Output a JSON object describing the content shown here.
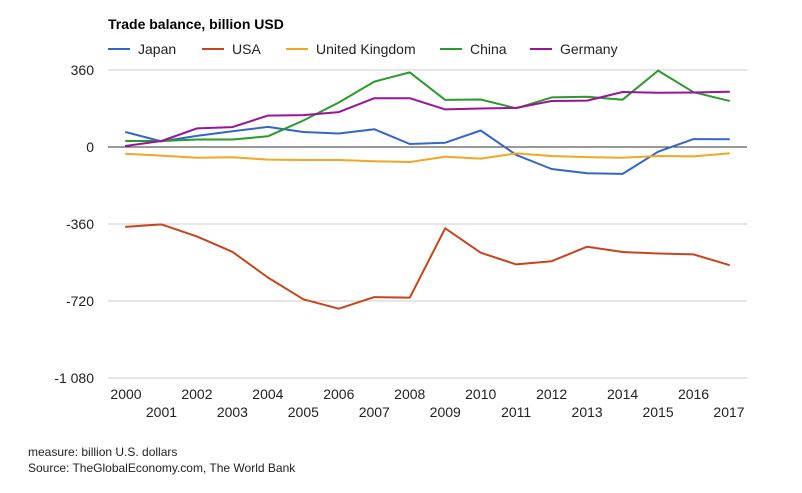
{
  "chart_data": {
    "type": "line",
    "title": "Trade balance, billion USD",
    "xlabel": "",
    "ylabel": "",
    "x": [
      2000,
      2001,
      2002,
      2003,
      2004,
      2005,
      2006,
      2007,
      2008,
      2009,
      2010,
      2011,
      2012,
      2013,
      2014,
      2015,
      2016,
      2017
    ],
    "ylim": [
      -1080,
      360
    ],
    "yticks": [
      360,
      0,
      -360,
      -720,
      -1080
    ],
    "ytick_labels": [
      "360",
      "0",
      "-360",
      "-720",
      "-1 080"
    ],
    "grid": true,
    "legend_position": "top",
    "series": [
      {
        "name": "Japan",
        "color": "#3366cc",
        "values": [
          69,
          26,
          52,
          74,
          94,
          70,
          63,
          83,
          14,
          20,
          77,
          -37,
          -103,
          -123,
          -126,
          -22,
          37,
          36
        ]
      },
      {
        "name": "USA",
        "color": "#c8441c",
        "values": [
          -373,
          -362,
          -418,
          -490,
          -610,
          -712,
          -756,
          -702,
          -704,
          -380,
          -494,
          -549,
          -534,
          -466,
          -491,
          -498,
          -502,
          -551
        ]
      },
      {
        "name": "United Kingdom",
        "color": "#f4a622",
        "values": [
          -32,
          -40,
          -50,
          -48,
          -59,
          -61,
          -61,
          -67,
          -70,
          -46,
          -54,
          -30,
          -42,
          -47,
          -50,
          -42,
          -44,
          -30
        ]
      },
      {
        "name": "China",
        "color": "#2a9a2a",
        "values": [
          28,
          28,
          35,
          35,
          50,
          124,
          208,
          306,
          349,
          220,
          222,
          181,
          232,
          235,
          221,
          357,
          256,
          216
        ]
      },
      {
        "name": "Germany",
        "color": "#99139b",
        "values": [
          5,
          28,
          87,
          93,
          147,
          149,
          163,
          228,
          228,
          176,
          180,
          183,
          215,
          217,
          257,
          254,
          255,
          258
        ]
      }
    ]
  },
  "footer": {
    "measure": "measure: billion U.S. dollars",
    "source": "Source: TheGlobalEconomy.com, The World Bank"
  }
}
